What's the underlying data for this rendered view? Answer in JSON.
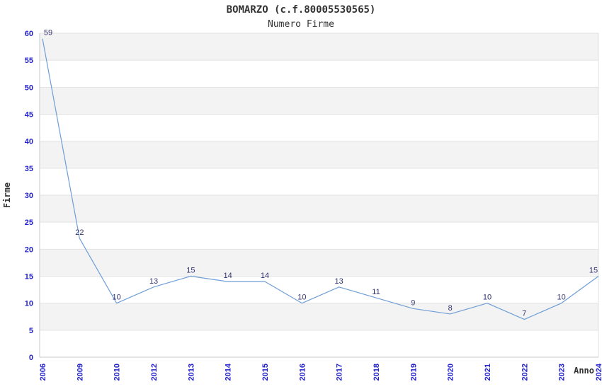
{
  "chart_data": {
    "type": "line",
    "title": "BOMARZO (c.f.80005530565)",
    "subtitle": "Numero Firme",
    "xlabel": "Anno",
    "ylabel": "Firme",
    "categories": [
      "2006",
      "2009",
      "2010",
      "2012",
      "2013",
      "2014",
      "2015",
      "2016",
      "2017",
      "2018",
      "2019",
      "2020",
      "2021",
      "2022",
      "2023",
      "2024"
    ],
    "values": [
      59,
      22,
      10,
      13,
      15,
      14,
      14,
      10,
      13,
      11,
      9,
      8,
      10,
      7,
      10,
      15
    ],
    "ylim": [
      0,
      60
    ],
    "ytick_step": 5,
    "yticks": [
      0,
      5,
      10,
      15,
      20,
      25,
      30,
      35,
      40,
      45,
      50,
      55,
      60
    ],
    "grid": "horizontal-alternating-bands",
    "legend": "none",
    "point_labels_visible": true,
    "colors": {
      "line": "#6f9ed6",
      "tick_label": "#2222cc",
      "point_label": "#333370",
      "band_fill": "#f3f3f3",
      "band_border": "#e2e2e2",
      "axis_line": "#c9c9c9",
      "title_text": "#333333",
      "background": "#ffffff"
    }
  }
}
